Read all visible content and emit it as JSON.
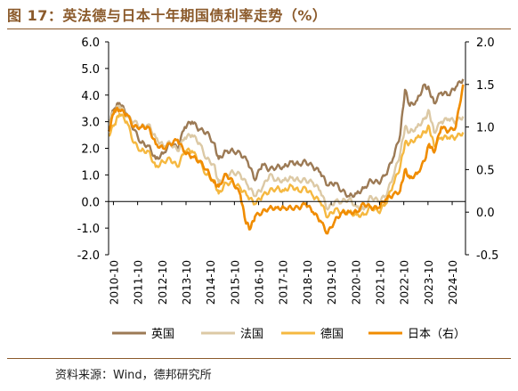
{
  "title": "图 17：英法德与日本十年期国债利率走势（%）",
  "source": "资料来源：Wind，德邦研究所",
  "chart_data": {
    "type": "line",
    "x_ticks": [
      "2010-10",
      "2011-10",
      "2012-10",
      "2013-10",
      "2014-10",
      "2015-10",
      "2016-10",
      "2017-10",
      "2018-10",
      "2019-10",
      "2020-10",
      "2021-10",
      "2022-10",
      "2023-10",
      "2024-10"
    ],
    "x_range": [
      2010.55,
      2025.3
    ],
    "y_left": {
      "range": [
        -2.0,
        6.0
      ],
      "ticks": [
        "-2.0",
        "-1.0",
        "0.0",
        "1.0",
        "2.0",
        "3.0",
        "4.0",
        "5.0",
        "6.0"
      ]
    },
    "y_right": {
      "range": [
        -0.5,
        2.0
      ],
      "ticks": [
        "-0.5",
        "0.0",
        "0.5",
        "1.0",
        "1.5",
        "2.0"
      ]
    },
    "grid": false,
    "legend_position": "bottom",
    "series": [
      {
        "name": "英国",
        "color": "#9C7A55",
        "axis": "left",
        "x": [
          2010.55,
          2010.8,
          2011.0,
          2011.3,
          2011.6,
          2011.9,
          2012.2,
          2012.5,
          2012.8,
          2013.1,
          2013.4,
          2013.7,
          2014.0,
          2014.3,
          2014.6,
          2014.9,
          2015.1,
          2015.4,
          2015.7,
          2016.0,
          2016.3,
          2016.6,
          2016.9,
          2017.2,
          2017.5,
          2017.8,
          2018.1,
          2018.4,
          2018.7,
          2019.0,
          2019.3,
          2019.6,
          2019.9,
          2020.2,
          2020.5,
          2020.8,
          2021.1,
          2021.4,
          2021.7,
          2022.0,
          2022.3,
          2022.6,
          2022.8,
          2023.0,
          2023.3,
          2023.6,
          2023.8,
          2024.0,
          2024.3,
          2024.6,
          2024.9,
          2025.2
        ],
        "y": [
          3.0,
          3.5,
          3.7,
          3.3,
          2.7,
          2.2,
          2.1,
          1.6,
          1.8,
          2.2,
          2.0,
          2.8,
          3.0,
          2.7,
          2.6,
          2.2,
          1.6,
          1.9,
          1.9,
          1.8,
          1.5,
          0.8,
          1.4,
          1.2,
          1.3,
          1.3,
          1.5,
          1.4,
          1.5,
          1.3,
          1.1,
          0.6,
          0.7,
          0.4,
          0.2,
          0.3,
          0.5,
          0.8,
          0.7,
          1.0,
          1.6,
          2.5,
          4.2,
          3.6,
          3.8,
          4.4,
          4.2,
          3.7,
          4.1,
          4.0,
          4.3,
          4.6
        ]
      },
      {
        "name": "法国",
        "color": "#DCC9A5",
        "axis": "left",
        "x": [
          2010.55,
          2010.8,
          2011.0,
          2011.3,
          2011.6,
          2011.9,
          2012.2,
          2012.5,
          2012.8,
          2013.1,
          2013.4,
          2013.7,
          2014.0,
          2014.3,
          2014.6,
          2014.9,
          2015.1,
          2015.4,
          2015.7,
          2016.0,
          2016.3,
          2016.6,
          2016.9,
          2017.2,
          2017.5,
          2017.8,
          2018.1,
          2018.4,
          2018.7,
          2019.0,
          2019.3,
          2019.6,
          2019.9,
          2020.2,
          2020.5,
          2020.8,
          2021.1,
          2021.4,
          2021.7,
          2022.0,
          2022.3,
          2022.6,
          2022.8,
          2023.0,
          2023.3,
          2023.6,
          2023.8,
          2024.0,
          2024.3,
          2024.6,
          2024.9,
          2025.2
        ],
        "y": [
          3.0,
          3.4,
          3.6,
          3.2,
          3.0,
          2.8,
          2.9,
          2.4,
          2.1,
          2.2,
          1.9,
          2.4,
          2.5,
          2.2,
          1.6,
          1.4,
          0.7,
          1.0,
          1.1,
          1.0,
          0.6,
          0.2,
          0.5,
          1.0,
          0.8,
          0.8,
          0.9,
          0.8,
          0.8,
          0.7,
          0.4,
          -0.3,
          0.0,
          0.0,
          0.1,
          -0.2,
          -0.3,
          0.2,
          0.0,
          0.2,
          0.9,
          1.8,
          2.8,
          2.6,
          2.8,
          3.1,
          3.4,
          2.6,
          3.0,
          3.1,
          3.0,
          3.2
        ]
      },
      {
        "name": "德国",
        "color": "#F5B840",
        "axis": "left",
        "x": [
          2010.55,
          2010.8,
          2011.0,
          2011.3,
          2011.6,
          2011.9,
          2012.2,
          2012.5,
          2012.8,
          2013.1,
          2013.4,
          2013.7,
          2014.0,
          2014.3,
          2014.6,
          2014.9,
          2015.1,
          2015.4,
          2015.7,
          2016.0,
          2016.3,
          2016.6,
          2016.9,
          2017.2,
          2017.5,
          2017.8,
          2018.1,
          2018.4,
          2018.7,
          2019.0,
          2019.3,
          2019.6,
          2019.9,
          2020.2,
          2020.5,
          2020.8,
          2021.1,
          2021.4,
          2021.7,
          2022.0,
          2022.3,
          2022.6,
          2022.8,
          2023.0,
          2023.3,
          2023.6,
          2023.8,
          2024.0,
          2024.3,
          2024.6,
          2024.9,
          2025.2
        ],
        "y": [
          2.5,
          2.9,
          3.3,
          3.0,
          2.2,
          1.9,
          1.9,
          1.3,
          1.5,
          1.6,
          1.3,
          1.9,
          1.9,
          1.5,
          1.0,
          0.8,
          0.3,
          0.7,
          0.7,
          0.5,
          0.2,
          -0.1,
          0.2,
          0.4,
          0.5,
          0.4,
          0.6,
          0.4,
          0.5,
          0.2,
          0.0,
          -0.6,
          -0.3,
          -0.4,
          -0.4,
          -0.5,
          -0.5,
          -0.2,
          -0.4,
          -0.1,
          0.6,
          1.3,
          2.2,
          2.2,
          2.4,
          2.6,
          2.8,
          2.1,
          2.4,
          2.4,
          2.4,
          2.6
        ]
      },
      {
        "name": "日本（右）",
        "color": "#F08C00",
        "axis": "right",
        "x": [
          2010.55,
          2010.8,
          2011.0,
          2011.3,
          2011.6,
          2011.9,
          2012.2,
          2012.5,
          2012.8,
          2013.1,
          2013.4,
          2013.7,
          2014.0,
          2014.3,
          2014.6,
          2014.9,
          2015.1,
          2015.4,
          2015.7,
          2016.0,
          2016.2,
          2016.4,
          2016.6,
          2016.9,
          2017.2,
          2017.5,
          2017.8,
          2018.1,
          2018.4,
          2018.7,
          2019.0,
          2019.3,
          2019.6,
          2019.9,
          2020.2,
          2020.5,
          2020.8,
          2021.1,
          2021.4,
          2021.7,
          2022.0,
          2022.3,
          2022.6,
          2022.8,
          2023.0,
          2023.3,
          2023.6,
          2023.8,
          2024.0,
          2024.3,
          2024.6,
          2024.9,
          2025.2
        ],
        "y": [
          0.95,
          1.2,
          1.2,
          1.15,
          1.0,
          1.0,
          1.0,
          0.8,
          0.75,
          0.8,
          0.85,
          0.7,
          0.65,
          0.6,
          0.5,
          0.35,
          0.3,
          0.45,
          0.35,
          0.2,
          -0.1,
          -0.2,
          -0.05,
          0.0,
          0.05,
          0.05,
          0.05,
          0.05,
          0.05,
          0.1,
          0.0,
          -0.1,
          -0.25,
          -0.1,
          0.0,
          0.0,
          0.0,
          0.1,
          0.05,
          0.05,
          0.15,
          0.2,
          0.25,
          0.5,
          0.4,
          0.45,
          0.6,
          0.8,
          0.7,
          1.0,
          0.95,
          1.0,
          1.5
        ]
      }
    ]
  }
}
